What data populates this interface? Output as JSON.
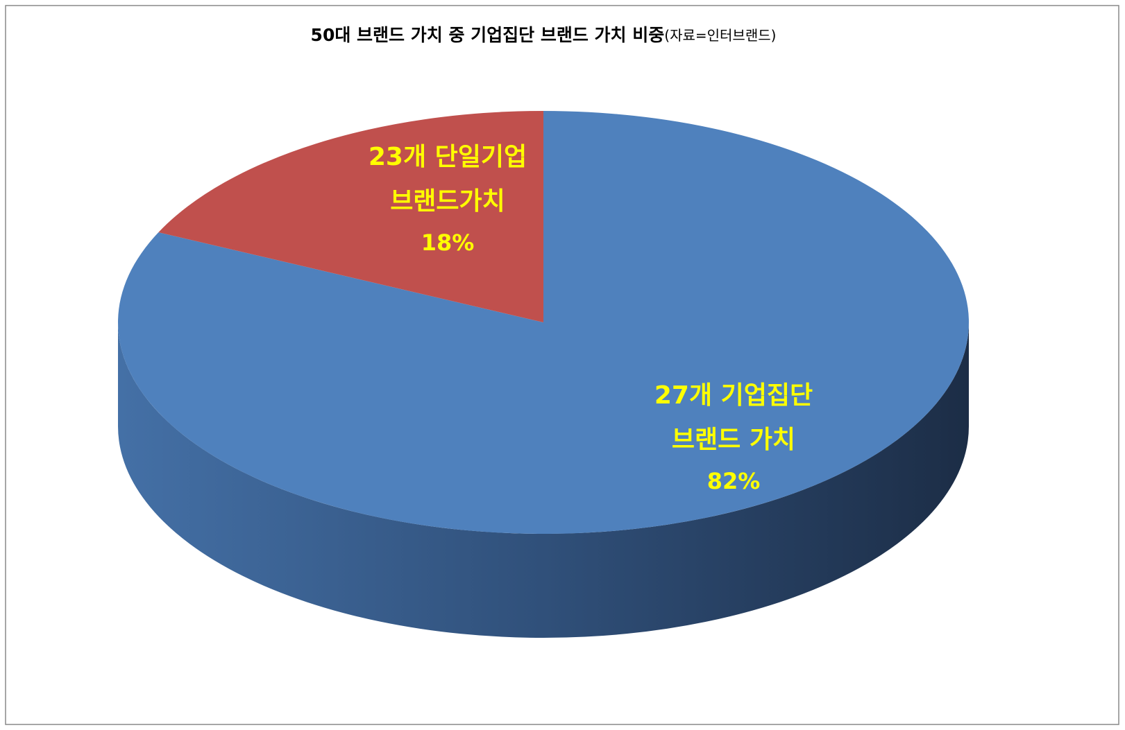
{
  "chart_data": {
    "type": "pie3d",
    "title": "50대 브랜드 가치 중 기업집단 브랜드 가치 비중",
    "source": "(자료=인터브랜드)",
    "categories": [
      [
        "27개 기업집단",
        "브랜드 가치"
      ],
      [
        "23개 단일기업",
        "브랜드가치"
      ]
    ],
    "values": [
      82,
      18
    ],
    "value_labels": [
      "82%",
      "18%"
    ],
    "colors": [
      "#4f81bd",
      "#c0504d"
    ]
  }
}
